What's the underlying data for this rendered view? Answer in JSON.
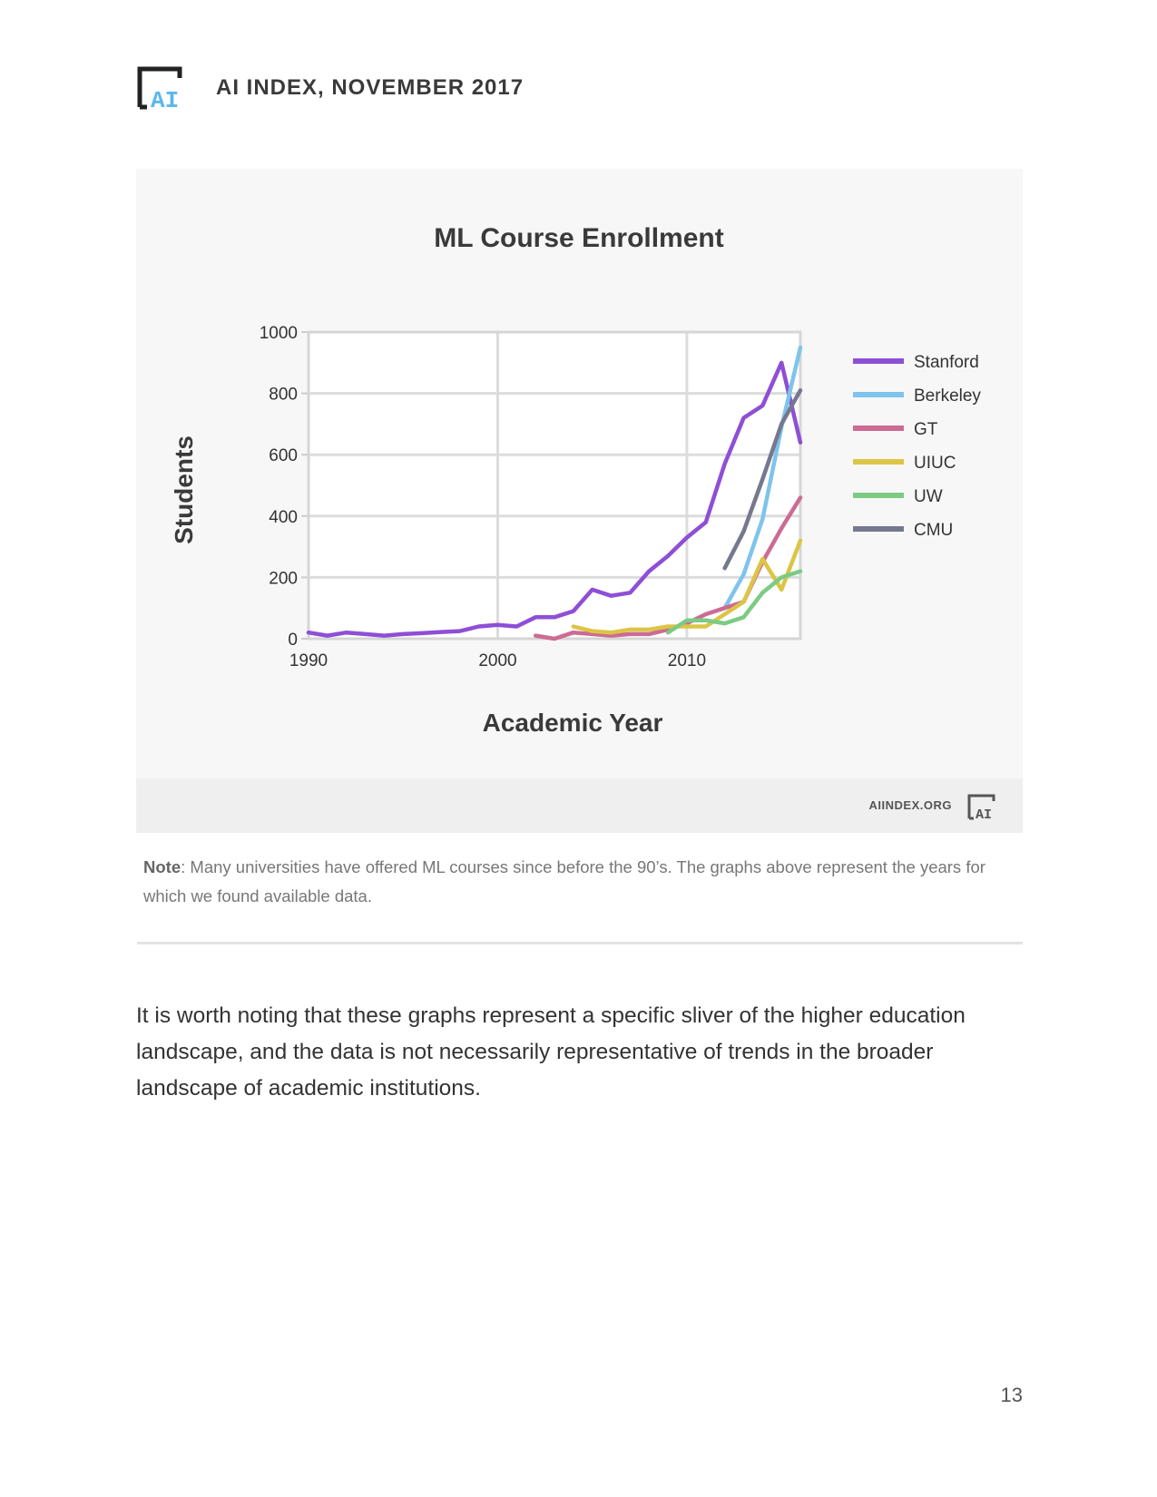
{
  "header": {
    "title": "AI INDEX, NOVEMBER 2017",
    "logo_text": "AI"
  },
  "chart_footer": {
    "site": "AIINDEX.ORG"
  },
  "colors": {
    "Stanford": "#8e4fd6",
    "Berkeley": "#7ec4ec",
    "GT": "#cc6b94",
    "UIUC": "#dcc545",
    "UW": "#7ccb84",
    "CMU": "#76788f"
  },
  "chart_data": {
    "type": "line",
    "title": "ML Course Enrollment",
    "xlabel": "Academic Year",
    "ylabel": "Students",
    "xlim": [
      1990,
      2016
    ],
    "ylim": [
      0,
      1000
    ],
    "xticks": [
      "1990",
      "2000",
      "2010"
    ],
    "yticks": [
      "0",
      "200",
      "400",
      "600",
      "800",
      "1000"
    ],
    "grid": true,
    "legend_position": "right",
    "series": [
      {
        "name": "Stanford",
        "x": [
          1990,
          1991,
          1992,
          1993,
          1994,
          1995,
          1996,
          1997,
          1998,
          1999,
          2000,
          2001,
          2002,
          2003,
          2004,
          2005,
          2006,
          2007,
          2008,
          2009,
          2010,
          2011,
          2012,
          2013,
          2014,
          2015,
          2016
        ],
        "y": [
          20,
          10,
          20,
          15,
          10,
          15,
          18,
          22,
          25,
          40,
          45,
          40,
          70,
          70,
          90,
          160,
          140,
          150,
          220,
          270,
          330,
          380,
          570,
          720,
          760,
          900,
          640
        ]
      },
      {
        "name": "Berkeley",
        "x": [
          2012,
          2013,
          2014,
          2015,
          2016
        ],
        "y": [
          100,
          210,
          390,
          690,
          950
        ]
      },
      {
        "name": "GT",
        "x": [
          2002,
          2003,
          2004,
          2005,
          2006,
          2007,
          2008,
          2009,
          2010,
          2011,
          2012,
          2013,
          2014,
          2015,
          2016
        ],
        "y": [
          10,
          0,
          20,
          15,
          10,
          15,
          15,
          30,
          50,
          80,
          100,
          120,
          250,
          360,
          460
        ]
      },
      {
        "name": "UIUC",
        "x": [
          2004,
          2005,
          2006,
          2007,
          2008,
          2009,
          2010,
          2011,
          2012,
          2013,
          2014,
          2015,
          2016
        ],
        "y": [
          40,
          25,
          20,
          30,
          30,
          40,
          40,
          40,
          80,
          120,
          260,
          160,
          320
        ]
      },
      {
        "name": "UW",
        "x": [
          2009,
          2010,
          2011,
          2012,
          2013,
          2014,
          2015,
          2016
        ],
        "y": [
          20,
          60,
          60,
          50,
          70,
          150,
          200,
          220
        ]
      },
      {
        "name": "CMU",
        "x": [
          2012,
          2013,
          2014,
          2015,
          2016
        ],
        "y": [
          230,
          350,
          520,
          700,
          810
        ]
      }
    ]
  },
  "note": {
    "label": "Note",
    "text": ": Many universities have offered ML courses since before the 90’s. The graphs above represent the years for which we found available data."
  },
  "body_text": "It is worth noting that these graphs represent a specific sliver of the higher education landscape, and the data is not necessarily representative of trends in the broader landscape of academic institutions.",
  "page_number": "13"
}
